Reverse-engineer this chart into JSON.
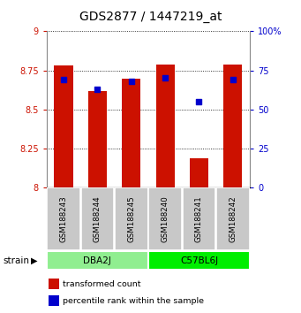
{
  "title": "GDS2877 / 1447219_at",
  "samples": [
    "GSM188243",
    "GSM188244",
    "GSM188245",
    "GSM188240",
    "GSM188241",
    "GSM188242"
  ],
  "transformed_counts": [
    8.78,
    8.62,
    8.7,
    8.79,
    8.19,
    8.79
  ],
  "percentile_ranks": [
    69,
    63,
    68,
    70,
    55,
    69
  ],
  "ylim_left": [
    8.0,
    9.0
  ],
  "ylim_right": [
    0,
    100
  ],
  "yticks_left": [
    8.0,
    8.25,
    8.5,
    8.75,
    9.0
  ],
  "ytick_labels_left": [
    "8",
    "8.25",
    "8.5",
    "8.75",
    "9"
  ],
  "yticks_right": [
    0,
    25,
    50,
    75,
    100
  ],
  "ytick_labels_right": [
    "0",
    "25",
    "50",
    "75",
    "100%"
  ],
  "bar_color": "#CC1100",
  "dot_color": "#0000CC",
  "bar_width": 0.55,
  "left_axis_color": "#CC1100",
  "right_axis_color": "#0000CC",
  "title_fontsize": 10,
  "tick_fontsize": 7,
  "background_xtick": "#C8C8C8",
  "background_group_dba": "#90EE90",
  "background_group_c57": "#00EE00",
  "strain_label": "strain",
  "legend_tc": "transformed count",
  "legend_pr": "percentile rank within the sample",
  "group_defs": [
    [
      0,
      3,
      "DBA2J"
    ],
    [
      3,
      6,
      "C57BL6J"
    ]
  ]
}
